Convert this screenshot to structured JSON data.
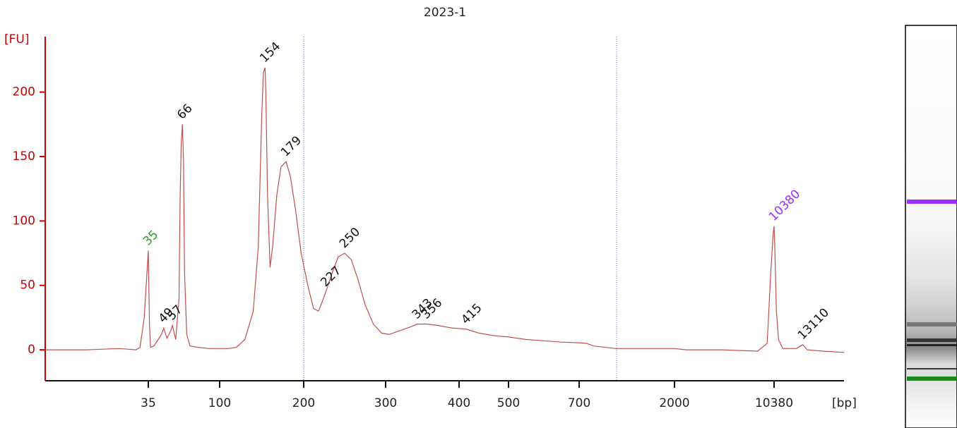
{
  "chart_data": {
    "type": "line",
    "title": "2023-1",
    "ylabel": "[FU]",
    "xlabel": "[bp]",
    "axis_color": "#cc0000",
    "ylim": [
      -24,
      243
    ],
    "yticks": [
      0,
      50,
      100,
      150,
      200
    ],
    "xlim": [
      10,
      17000
    ],
    "xticks": [
      35,
      100,
      200,
      300,
      400,
      500,
      700,
      2000,
      10380
    ],
    "trace": {
      "color": "#c0504d",
      "x": [
        10,
        20,
        28,
        32,
        33,
        34,
        35,
        36,
        37,
        40,
        44,
        47,
        49,
        52,
        55,
        57,
        60,
        63,
        64,
        65,
        66,
        67,
        68,
        70,
        73,
        80,
        90,
        110,
        120,
        130,
        140,
        146,
        150,
        152,
        154,
        155,
        157,
        160,
        163,
        168,
        173,
        179,
        184,
        190,
        197,
        205,
        212,
        218,
        223,
        227,
        235,
        242,
        250,
        258,
        266,
        275,
        285,
        295,
        305,
        320,
        335,
        343,
        350,
        356,
        370,
        390,
        415,
        440,
        470,
        500,
        550,
        600,
        650,
        700,
        800,
        900,
        1200,
        1600,
        2000,
        3000,
        6000,
        9000,
        9800,
        10100,
        10300,
        10380,
        10450,
        10600,
        10800,
        11200,
        12500,
        13110,
        13500,
        15000,
        17000
      ],
      "values": [
        0,
        0,
        1,
        0,
        2,
        25,
        77,
        20,
        2,
        3,
        8,
        12,
        17,
        9,
        14,
        19,
        8,
        40,
        120,
        160,
        175,
        150,
        60,
        12,
        3,
        2,
        1,
        1,
        2,
        8,
        30,
        80,
        180,
        215,
        219,
        200,
        120,
        64,
        80,
        120,
        142,
        146,
        135,
        110,
        75,
        50,
        32,
        30,
        38,
        45,
        60,
        72,
        75,
        70,
        55,
        35,
        20,
        13,
        12,
        15,
        18,
        20,
        20,
        20,
        19,
        17,
        16,
        13,
        11,
        10,
        8,
        7,
        6,
        5.5,
        5,
        3,
        1,
        1,
        1,
        0,
        0,
        -1,
        5,
        60,
        90,
        96,
        80,
        30,
        8,
        1,
        1,
        4,
        0,
        -1,
        -2
      ]
    },
    "peaks": [
      {
        "x": 35,
        "y": 77,
        "color": "#2a9d2a"
      },
      {
        "x": 49,
        "y": 17,
        "color": "#111111"
      },
      {
        "x": 57,
        "y": 19,
        "color": "#111111"
      },
      {
        "x": 66,
        "y": 175,
        "color": "#111111"
      },
      {
        "x": 154,
        "y": 219,
        "color": "#111111"
      },
      {
        "x": 179,
        "y": 146,
        "color": "#111111"
      },
      {
        "x": 227,
        "y": 45,
        "color": "#111111"
      },
      {
        "x": 250,
        "y": 75,
        "color": "#111111"
      },
      {
        "x": 343,
        "y": 20,
        "color": "#111111"
      },
      {
        "x": 356,
        "y": 20,
        "color": "#111111"
      },
      {
        "x": 415,
        "y": 16,
        "color": "#111111"
      },
      {
        "x": 10380,
        "y": 96,
        "color": "#9b30ff"
      },
      {
        "x": 13110,
        "y": 4,
        "color": "#111111"
      }
    ]
  }
}
